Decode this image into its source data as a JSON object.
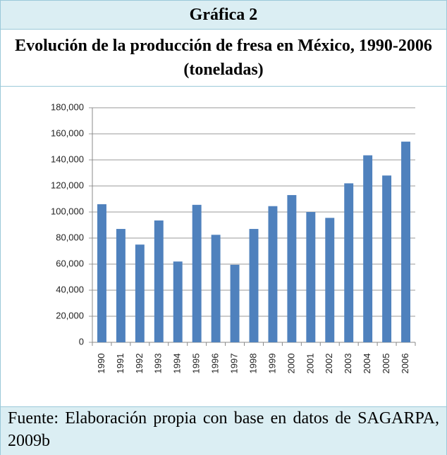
{
  "header": "Gráfica 2",
  "source": "Fuente: Elaboración propia con base en datos de SAGARPA, 2009b",
  "chart_data": {
    "type": "bar",
    "title": "Evolución de la producción de fresa en México, 1990-2006 (toneladas)",
    "categories": [
      "1990",
      "1991",
      "1992",
      "1993",
      "1994",
      "1995",
      "1996",
      "1997",
      "1998",
      "1999",
      "2000",
      "2001",
      "2002",
      "2003",
      "2004",
      "2005",
      "2006"
    ],
    "values": [
      106000,
      87000,
      75000,
      93500,
      62000,
      105500,
      82500,
      59500,
      87000,
      104500,
      113000,
      100000,
      95500,
      122000,
      143500,
      128000,
      154000
    ],
    "color": "#4f81bd",
    "ylim": [
      0,
      180000
    ],
    "yticks": [
      0,
      {
        "value": 20000,
        "label": "20,000"
      },
      {
        "value": 40000,
        "label": "40,000"
      },
      {
        "value": 60000,
        "label": "60,000"
      },
      {
        "value": 80000,
        "label": "80,000"
      },
      {
        "value": 100000,
        "label": "100,000"
      },
      {
        "value": 120000,
        "label": "120,000"
      },
      {
        "value": 140000,
        "label": "140,000"
      },
      {
        "value": 160000,
        "label": "160,000"
      },
      {
        "value": 180000,
        "label": "180,000"
      }
    ],
    "grid": true
  }
}
